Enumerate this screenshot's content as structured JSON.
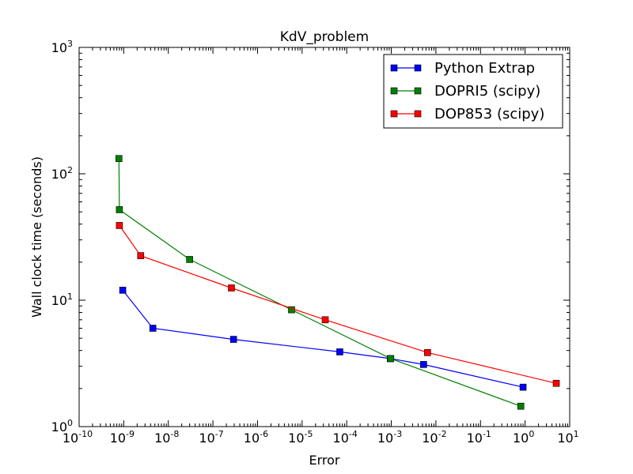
{
  "chart_data": {
    "type": "line",
    "title": "KdV_problem",
    "xlabel": "Error",
    "ylabel": "Wall clock time (seconds)",
    "xscale": "log",
    "yscale": "log",
    "xlim": [
      1e-10,
      10
    ],
    "ylim": [
      1,
      1000
    ],
    "x_tick_labels": [
      {
        "base": "10",
        "exp": "-10"
      },
      {
        "base": "10",
        "exp": "-9"
      },
      {
        "base": "10",
        "exp": "-8"
      },
      {
        "base": "10",
        "exp": "-7"
      },
      {
        "base": "10",
        "exp": "-6"
      },
      {
        "base": "10",
        "exp": "-5"
      },
      {
        "base": "10",
        "exp": "-4"
      },
      {
        "base": "10",
        "exp": "-3"
      },
      {
        "base": "10",
        "exp": "-2"
      },
      {
        "base": "10",
        "exp": "-1"
      },
      {
        "base": "10",
        "exp": "0"
      },
      {
        "base": "10",
        "exp": "1"
      }
    ],
    "y_tick_labels": [
      {
        "base": "10",
        "exp": "0"
      },
      {
        "base": "10",
        "exp": "1"
      },
      {
        "base": "10",
        "exp": "2"
      },
      {
        "base": "10",
        "exp": "3"
      }
    ],
    "grid": false,
    "legend_position": "top-right",
    "series": [
      {
        "name": "Python Extrap",
        "color": "#0000ff",
        "marker": "square",
        "x": [
          9.5e-10,
          4.5e-09,
          2.9e-07,
          7e-05,
          0.00095,
          0.0053,
          0.9
        ],
        "y": [
          12,
          6,
          4.9,
          3.9,
          3.45,
          3.1,
          2.05
        ]
      },
      {
        "name": "DOPRI5 (scipy)",
        "color": "#008000",
        "marker": "square",
        "x": [
          7.8e-10,
          8e-10,
          3e-08,
          5.8e-06,
          0.00097,
          0.8
        ],
        "y": [
          132,
          52,
          21,
          8.4,
          3.45,
          1.45
        ]
      },
      {
        "name": "DOP853 (scipy)",
        "color": "#ff0000",
        "marker": "square",
        "x": [
          8e-10,
          2.4e-09,
          2.6e-07,
          3.3e-05,
          0.0065,
          5
        ],
        "y": [
          39,
          22.5,
          12.5,
          7,
          3.85,
          2.2
        ]
      }
    ]
  }
}
